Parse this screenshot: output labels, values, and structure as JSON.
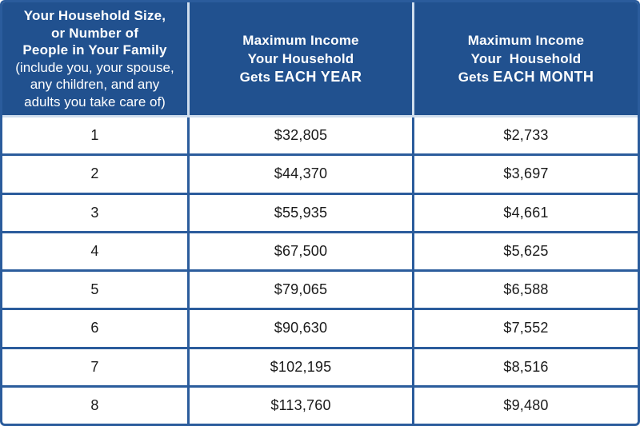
{
  "colors": {
    "header_bg": "#21518f",
    "grid_border": "#2b5c9c",
    "header_divider": "#cfdded",
    "body_bg": "#ffffff",
    "body_text": "#1b1b1b",
    "header_text": "#ffffff"
  },
  "table": {
    "header": {
      "household": {
        "bold_lines": [
          "Your Household Size,",
          "or Number of",
          "People in Your Family"
        ],
        "normal_lines": [
          "(include you, your spouse,",
          "any children, and any",
          "adults you take care of)"
        ]
      },
      "yearly": {
        "line1": "Maximum Income",
        "line2": "Your Household",
        "line3_prefix": "Gets ",
        "line3_strong": "EACH YEAR"
      },
      "monthly": {
        "line1": "Maximum Income",
        "line2": "Your  Household",
        "line3_prefix": "Gets ",
        "line3_strong": "EACH MONTH"
      }
    },
    "rows": [
      {
        "size": "1",
        "year": "$32,805",
        "month": "$2,733"
      },
      {
        "size": "2",
        "year": "$44,370",
        "month": "$3,697"
      },
      {
        "size": "3",
        "year": "$55,935",
        "month": "$4,661"
      },
      {
        "size": "4",
        "year": "$67,500",
        "month": "$5,625"
      },
      {
        "size": "5",
        "year": "$79,065",
        "month": "$6,588"
      },
      {
        "size": "6",
        "year": "$90,630",
        "month": "$7,552"
      },
      {
        "size": "7",
        "year": "$102,195",
        "month": "$8,516"
      },
      {
        "size": "8",
        "year": "$113,760",
        "month": "$9,480"
      }
    ]
  }
}
